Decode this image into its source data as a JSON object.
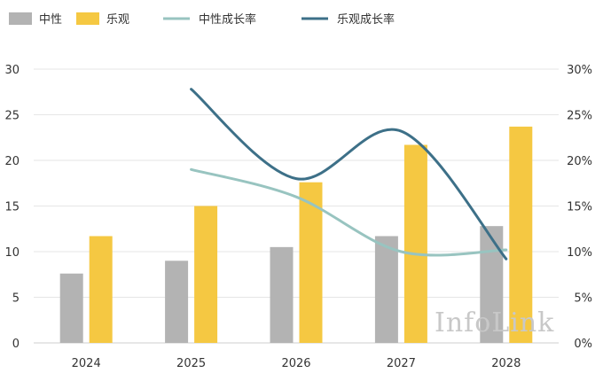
{
  "chart_data": {
    "type": "bar",
    "categories": [
      "2024",
      "2025",
      "2026",
      "2027",
      "2028"
    ],
    "series": [
      {
        "name": "中性",
        "kind": "bar",
        "color": "#b3b3b3",
        "values": [
          7.6,
          9.0,
          10.5,
          11.7,
          12.8
        ]
      },
      {
        "name": "乐观",
        "kind": "bar",
        "color": "#f5c842",
        "values": [
          11.7,
          15.0,
          17.6,
          21.7,
          23.7
        ]
      },
      {
        "name": "中性成长率",
        "kind": "line",
        "axis": "right",
        "color": "#98c4c0",
        "values": [
          null,
          19.0,
          16.0,
          10.0,
          10.2
        ]
      },
      {
        "name": "乐观成长率",
        "kind": "line",
        "axis": "right",
        "color": "#3d7088",
        "values": [
          null,
          27.8,
          18.0,
          23.2,
          9.2
        ]
      }
    ],
    "y_left": {
      "range": [
        0,
        30
      ],
      "ticks": [
        "0",
        "5",
        "10",
        "15",
        "20",
        "25",
        "30"
      ]
    },
    "y_right": {
      "range": [
        0,
        30
      ],
      "ticks": [
        "0%",
        "5%",
        "10%",
        "15%",
        "20%",
        "25%",
        "30%"
      ]
    },
    "grid": true,
    "legend_position": "top-left",
    "watermark": "InfoLink"
  }
}
